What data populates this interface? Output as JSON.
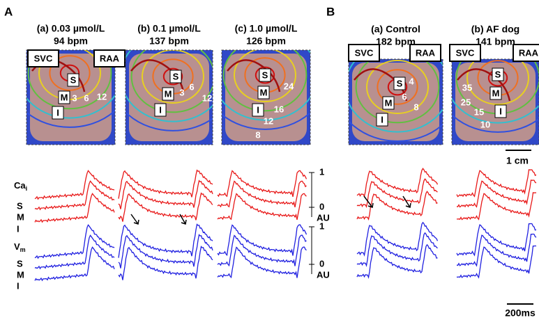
{
  "panel_A": {
    "label": "A",
    "maps": [
      {
        "title": "(a) 0.03  µmol/L",
        "rate": "94 bpm",
        "svc": "SVC",
        "raa": "RAA",
        "sites": [
          "S",
          "M",
          "I"
        ],
        "isochrones": [
          "3",
          "6",
          "12"
        ]
      },
      {
        "title": "(b) 0.1 µmol/L",
        "rate": "137 bpm",
        "sites": [
          "S",
          "M",
          "I"
        ],
        "isochrones": [
          "3",
          "6",
          "12"
        ]
      },
      {
        "title": "(c) 1.0 µmol/L",
        "rate": "126 bpm",
        "sites": [
          "S",
          "M",
          "I"
        ],
        "isochrones": [
          "24",
          "16",
          "12",
          "8"
        ]
      }
    ]
  },
  "panel_B": {
    "label": "B",
    "maps": [
      {
        "title": "(a) Control",
        "rate": "182 bpm",
        "svc": "SVC",
        "raa": "RAA",
        "sites": [
          "S",
          "M",
          "I"
        ],
        "isochrones": [
          "4",
          "6",
          "8"
        ]
      },
      {
        "title": "(b) AF dog",
        "rate": "141 bpm",
        "svc": "SVC",
        "raa": "RAA",
        "sites": [
          "S",
          "M",
          "I"
        ],
        "isochrones": [
          "35",
          "25",
          "15",
          "10"
        ]
      }
    ],
    "length_scale": "1 cm",
    "time_scale": "200ms"
  },
  "traces": {
    "ca": {
      "label": "Ca",
      "sub": "i",
      "sites": [
        "S",
        "M",
        "I"
      ],
      "scale_top": "1",
      "scale_zero": "0",
      "scale_unit": "AU"
    },
    "vm": {
      "label": "V",
      "sub": "m",
      "sites": [
        "S",
        "M",
        "I"
      ],
      "scale_top": "1",
      "scale_zero": "0",
      "scale_unit": "AU"
    }
  }
}
